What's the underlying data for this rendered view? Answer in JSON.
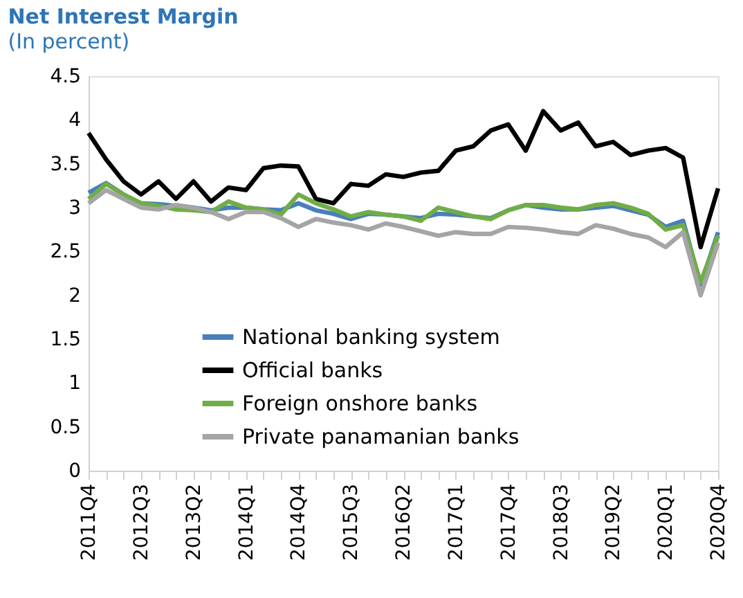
{
  "chart_data": {
    "type": "line",
    "title": "Net Interest Margin",
    "subtitle": "(In percent)",
    "categories": [
      "2011Q4",
      null,
      null,
      "2012Q3",
      null,
      null,
      "2013Q2",
      null,
      null,
      "2014Q1",
      null,
      null,
      "2014Q4",
      null,
      null,
      "2015Q3",
      null,
      null,
      "2016Q2",
      null,
      null,
      "2017Q1",
      null,
      null,
      "2017Q4",
      null,
      null,
      "2018Q3",
      null,
      null,
      "2019Q2",
      null,
      null,
      "2020Q1",
      null,
      null,
      "2020Q4"
    ],
    "series": [
      {
        "name": "National banking system",
        "color": "#4a7ebb",
        "values": [
          3.17,
          3.28,
          3.15,
          3.05,
          3.04,
          3.02,
          3.0,
          2.97,
          3.0,
          3.0,
          2.98,
          2.97,
          3.05,
          2.97,
          2.93,
          2.87,
          2.93,
          2.92,
          2.9,
          2.88,
          2.93,
          2.92,
          2.9,
          2.88,
          2.97,
          3.03,
          3.0,
          2.98,
          2.98,
          3.0,
          3.02,
          2.97,
          2.92,
          2.78,
          2.85,
          2.12,
          2.72
        ]
      },
      {
        "name": "Official banks",
        "color": "#000000",
        "values": [
          3.85,
          3.55,
          3.3,
          3.15,
          3.3,
          3.1,
          3.3,
          3.07,
          3.23,
          3.2,
          3.45,
          3.48,
          3.47,
          3.1,
          3.05,
          3.27,
          3.25,
          3.38,
          3.35,
          3.4,
          3.42,
          3.65,
          3.7,
          3.88,
          3.95,
          3.65,
          4.1,
          3.88,
          3.97,
          3.7,
          3.75,
          3.6,
          3.65,
          3.68,
          3.57,
          2.55,
          3.22
        ]
      },
      {
        "name": "Foreign onshore banks",
        "color": "#70ad47",
        "values": [
          3.1,
          3.27,
          3.15,
          3.05,
          3.02,
          2.98,
          2.97,
          2.95,
          3.07,
          3.0,
          2.98,
          2.92,
          3.15,
          3.05,
          2.98,
          2.9,
          2.95,
          2.92,
          2.9,
          2.85,
          3.0,
          2.95,
          2.9,
          2.87,
          2.97,
          3.03,
          3.03,
          3.0,
          2.98,
          3.03,
          3.05,
          3.0,
          2.93,
          2.75,
          2.8,
          2.15,
          2.68
        ]
      },
      {
        "name": "Private panamanian banks",
        "color": "#a5a5a5",
        "values": [
          3.05,
          3.2,
          3.1,
          3.0,
          2.98,
          3.03,
          3.0,
          2.95,
          2.87,
          2.95,
          2.95,
          2.88,
          2.78,
          2.87,
          2.83,
          2.8,
          2.75,
          2.82,
          2.78,
          2.73,
          2.68,
          2.72,
          2.7,
          2.7,
          2.78,
          2.77,
          2.75,
          2.72,
          2.7,
          2.8,
          2.76,
          2.7,
          2.66,
          2.55,
          2.72,
          2.0,
          2.6
        ]
      }
    ],
    "ylim": [
      0,
      4.5
    ],
    "yticks": [
      0,
      0.5,
      1,
      1.5,
      2,
      2.5,
      3,
      3.5,
      4,
      4.5
    ],
    "grid": false,
    "legend": "bottom",
    "marker": "none",
    "line_style": "solid"
  }
}
